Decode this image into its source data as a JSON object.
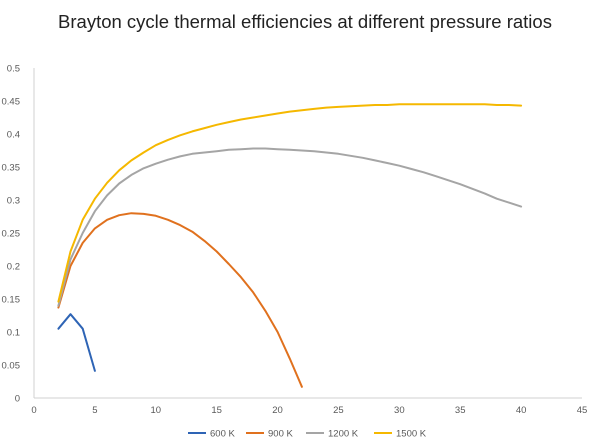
{
  "chart_data": {
    "type": "line",
    "title": "Brayton cycle thermal efficiencies at different pressure ratios",
    "xlabel": "",
    "ylabel": "",
    "xlim": [
      0,
      45
    ],
    "ylim": [
      0,
      0.5
    ],
    "xticks": [
      "0",
      "5",
      "10",
      "15",
      "20",
      "25",
      "30",
      "35",
      "40",
      "45"
    ],
    "yticks": [
      "0",
      "0.05",
      "0.1",
      "0.15",
      "0.2",
      "0.25",
      "0.3",
      "0.35",
      "0.4",
      "0.45",
      "0.5"
    ],
    "grid": false,
    "legend": "bottom",
    "series": [
      {
        "name": "600 K",
        "color": "#2e64b5",
        "x": [
          2,
          3,
          4,
          5
        ],
        "y": [
          0.105,
          0.127,
          0.105,
          0.041
        ]
      },
      {
        "name": "900 K",
        "color": "#e0711e",
        "x": [
          2,
          3,
          4,
          5,
          6,
          7,
          8,
          9,
          10,
          11,
          12,
          13,
          14,
          15,
          16,
          17,
          18,
          19,
          20,
          21,
          22
        ],
        "y": [
          0.137,
          0.2,
          0.235,
          0.257,
          0.27,
          0.277,
          0.28,
          0.279,
          0.276,
          0.27,
          0.262,
          0.252,
          0.238,
          0.222,
          0.203,
          0.183,
          0.16,
          0.132,
          0.1,
          0.06,
          0.017
        ]
      },
      {
        "name": "1200 K",
        "color": "#a5a5a5",
        "x": [
          2,
          3,
          4,
          5,
          6,
          7,
          8,
          9,
          10,
          11,
          12,
          13,
          14,
          15,
          16,
          17,
          18,
          19,
          20,
          21,
          22,
          23,
          24,
          25,
          26,
          27,
          28,
          29,
          30,
          31,
          32,
          33,
          34,
          35,
          36,
          37,
          38,
          39,
          40
        ],
        "y": [
          0.14,
          0.21,
          0.25,
          0.283,
          0.307,
          0.325,
          0.338,
          0.348,
          0.355,
          0.361,
          0.366,
          0.37,
          0.372,
          0.374,
          0.376,
          0.377,
          0.378,
          0.378,
          0.377,
          0.376,
          0.375,
          0.374,
          0.372,
          0.37,
          0.367,
          0.364,
          0.36,
          0.356,
          0.352,
          0.347,
          0.342,
          0.336,
          0.33,
          0.324,
          0.317,
          0.31,
          0.302,
          0.296,
          0.29
        ]
      },
      {
        "name": "1500 K",
        "color": "#f5b800",
        "x": [
          2,
          3,
          4,
          5,
          6,
          7,
          8,
          9,
          10,
          11,
          12,
          13,
          14,
          15,
          16,
          17,
          18,
          19,
          20,
          21,
          22,
          23,
          24,
          25,
          26,
          27,
          28,
          29,
          30,
          31,
          32,
          33,
          34,
          35,
          36,
          37,
          38,
          39,
          40
        ],
        "y": [
          0.146,
          0.222,
          0.27,
          0.302,
          0.326,
          0.345,
          0.36,
          0.372,
          0.383,
          0.391,
          0.398,
          0.404,
          0.409,
          0.414,
          0.418,
          0.422,
          0.425,
          0.428,
          0.431,
          0.434,
          0.436,
          0.438,
          0.44,
          0.441,
          0.442,
          0.443,
          0.444,
          0.444,
          0.445,
          0.445,
          0.445,
          0.445,
          0.445,
          0.445,
          0.445,
          0.445,
          0.444,
          0.444,
          0.443
        ]
      }
    ]
  }
}
